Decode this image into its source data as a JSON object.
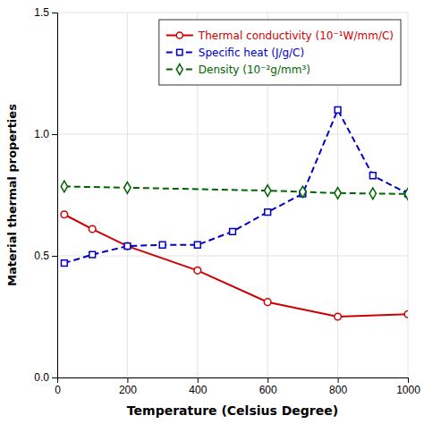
{
  "chart_data": {
    "type": "line",
    "xlabel": "Temperature (Celsius Degree)",
    "ylabel": "Material thermal properties",
    "xlim": [
      0,
      1000
    ],
    "ylim": [
      0,
      1.5
    ],
    "xticks": [
      0,
      200,
      400,
      600,
      800,
      1000
    ],
    "yticks": [
      {
        "value": 0,
        "label": "0.0"
      },
      0.5,
      {
        "value": 1.0,
        "label": "1.0"
      },
      1.5
    ],
    "grid": true,
    "legend": "upper right",
    "series": [
      {
        "name": "Thermal conductivity (10⁻¹W/mm/C)",
        "color": "#cc0000",
        "marker": "circle",
        "line_style": "solid",
        "x": [
          20,
          100,
          200,
          400,
          600,
          800,
          1000
        ],
        "values": [
          0.67,
          0.61,
          0.54,
          0.44,
          0.31,
          0.25,
          0.26
        ]
      },
      {
        "name": "Specific heat (J/g/C)",
        "color": "#0000cc",
        "marker": "square",
        "line_style": "dashed",
        "x": [
          20,
          100,
          200,
          300,
          400,
          500,
          600,
          700,
          800,
          900,
          1000
        ],
        "values": [
          0.47,
          0.505,
          0.54,
          0.545,
          0.545,
          0.6,
          0.68,
          0.755,
          1.1,
          0.83,
          0.755
        ]
      },
      {
        "name": "Density (10⁻²g/mm³)",
        "color": "#006400",
        "marker": "diamond",
        "line_style": "dashed",
        "x": [
          20,
          200,
          600,
          700,
          800,
          900,
          1000
        ],
        "values": [
          0.785,
          0.78,
          0.768,
          0.763,
          0.758,
          0.756,
          0.754
        ]
      }
    ]
  }
}
